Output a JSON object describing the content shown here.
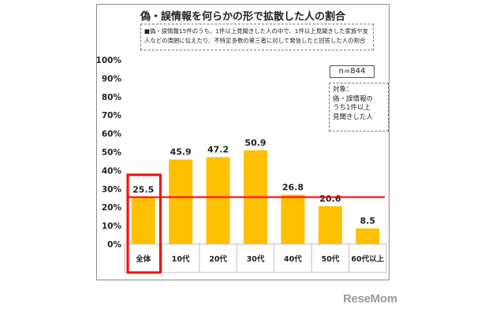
{
  "chart_data": {
    "type": "bar",
    "title": "偽・誤情報を何らかの形で拡散した人の割合",
    "note": "■偽・誤情報15件のうち、1件以上見聞きした人の中で、1件以上見聞きした家族や友人などの周囲に伝えたり、不特定多数の第三者に対して発信したと回答した人の割合",
    "sample_size": "n=844",
    "target_note": "対象：\n偽・誤情報の\nうち1件以上\n見聞きした人",
    "categories": [
      "全体",
      "10代",
      "20代",
      "30代",
      "40代",
      "50代",
      "60代以上"
    ],
    "values": [
      25.5,
      45.9,
      47.2,
      50.9,
      26.8,
      20.6,
      8.5
    ],
    "value_labels": [
      "25.5",
      "45.9",
      "47.2",
      "50.9",
      "26.8",
      "20.6",
      "8.5"
    ],
    "y_ticks": [
      "100%",
      "90%",
      "80%",
      "70%",
      "60%",
      "50%",
      "40%",
      "30%",
      "20%",
      "10%",
      "0%"
    ],
    "ylim": [
      0,
      100
    ],
    "reference_line": 25.5,
    "highlight_category": "全体",
    "colors": {
      "bar": "#ffc000",
      "reference_line": "#ff0000",
      "highlight_box": "#ff0000",
      "grid": "#bfbfbf"
    },
    "grid": false
  },
  "watermark": "ReseMom"
}
